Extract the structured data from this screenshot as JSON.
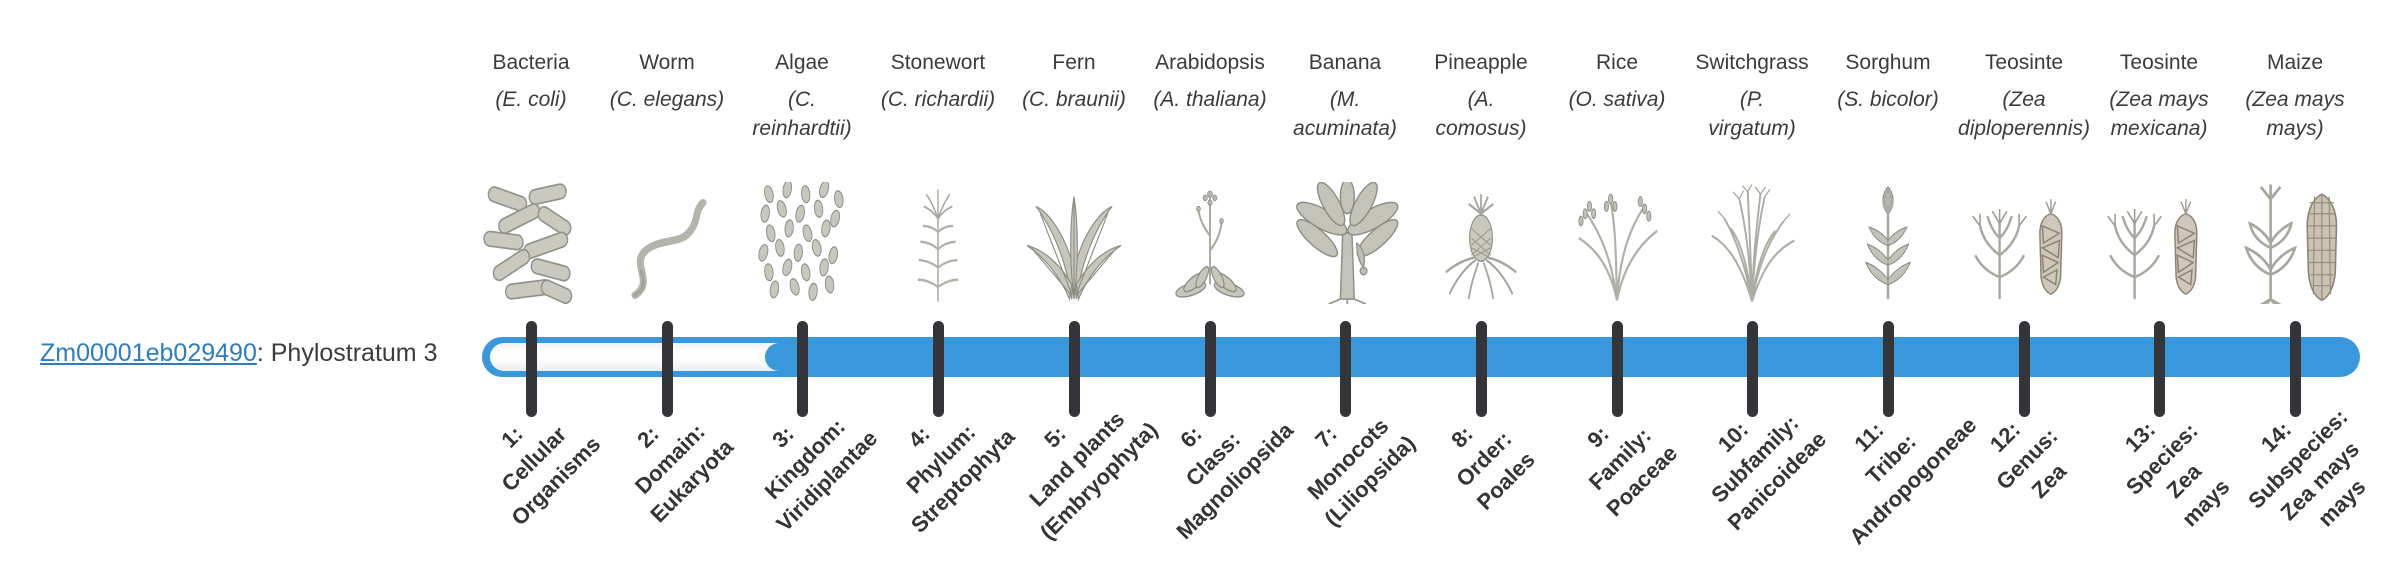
{
  "gene": {
    "id": "Zm00001eb029490",
    "label_suffix": ": Phylostratum 3",
    "phylostratum": 3
  },
  "bar": {
    "filled_color": "#3997db",
    "unfilled_color": "#fcfcfc",
    "tick_color": "#333538",
    "origin_stratum": 3,
    "total_strata": 14
  },
  "organisms": [
    {
      "common": "Bacteria",
      "scientific": "(E. coli)",
      "icon": "bacteria-illustration"
    },
    {
      "common": "Worm",
      "scientific": "(C. elegans)",
      "icon": "worm-illustration"
    },
    {
      "common": "Algae",
      "scientific": "(C.\nreinhardtii)",
      "icon": "algae-illustration"
    },
    {
      "common": "Stonewort",
      "scientific": "(C. richardii)",
      "icon": "stonewort-illustration"
    },
    {
      "common": "Fern",
      "scientific": "(C. braunii)",
      "icon": "fern-illustration"
    },
    {
      "common": "Arabidopsis",
      "scientific": "(A. thaliana)",
      "icon": "arabidopsis-illustration"
    },
    {
      "common": "Banana",
      "scientific": "(M.\nacuminata)",
      "icon": "banana-illustration"
    },
    {
      "common": "Pineapple",
      "scientific": "(A.\ncomosus)",
      "icon": "pineapple-illustration"
    },
    {
      "common": "Rice",
      "scientific": "(O. sativa)",
      "icon": "rice-illustration"
    },
    {
      "common": "Switchgrass",
      "scientific": "(P.\nvirgatum)",
      "icon": "switchgrass-illustration"
    },
    {
      "common": "Sorghum",
      "scientific": "(S. bicolor)",
      "icon": "sorghum-illustration"
    },
    {
      "common": "Teosinte",
      "scientific": "(Zea\ndiploperennis)",
      "icon": "teosinte-illustration"
    },
    {
      "common": "Teosinte",
      "scientific": "(Zea mays\nmexicana)",
      "icon": "teosinte-illustration"
    },
    {
      "common": "Maize",
      "scientific": "(Zea mays\nmays)",
      "icon": "maize-illustration"
    }
  ],
  "strata": [
    {
      "number": 1,
      "label": "1:\nCellular\nOrganisms"
    },
    {
      "number": 2,
      "label": "2:\nDomain:\nEukaryota"
    },
    {
      "number": 3,
      "label": "3:\nKingdom:\nViridiplantae"
    },
    {
      "number": 4,
      "label": "4:\nPhylum:\nStreptophyta"
    },
    {
      "number": 5,
      "label": "5:\nLand plants\n(Embryophyta)"
    },
    {
      "number": 6,
      "label": "6:\nClass:\nMagnoliopsida"
    },
    {
      "number": 7,
      "label": "7:\nMonocots\n(Liliopsida)"
    },
    {
      "number": 8,
      "label": "8:\nOrder:\nPoales"
    },
    {
      "number": 9,
      "label": "9:\nFamily:\nPoaceae"
    },
    {
      "number": 10,
      "label": "10:\nSubfamily:\nPanicoideae"
    },
    {
      "number": 11,
      "label": "11:\nTribe:\nAndropogoneae"
    },
    {
      "number": 12,
      "label": "12:\nGenus:\nZea"
    },
    {
      "number": 13,
      "label": "13:\nSpecies:\nZea\nmays"
    },
    {
      "number": 14,
      "label": "14:\nSubspecies:\nZea mays\nmays"
    }
  ]
}
